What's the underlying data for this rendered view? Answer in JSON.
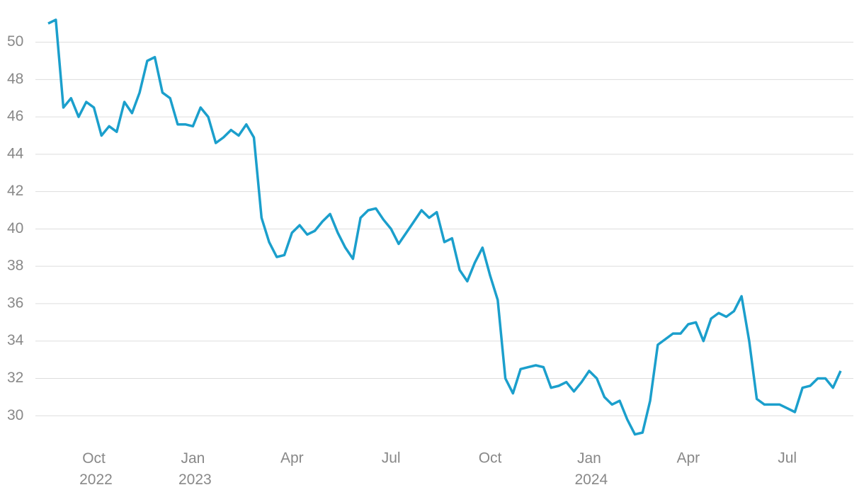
{
  "chart_data": {
    "type": "line",
    "categories": [
      null,
      null,
      null,
      null,
      null,
      null,
      "Oct 2022",
      null,
      null,
      null,
      null,
      null,
      null,
      null,
      null,
      null,
      null,
      null,
      null,
      "Jan 2023",
      null,
      null,
      null,
      null,
      null,
      null,
      null,
      null,
      null,
      null,
      null,
      null,
      "Apr",
      null,
      null,
      null,
      null,
      null,
      null,
      null,
      null,
      null,
      null,
      null,
      null,
      "Jul",
      null,
      null,
      null,
      null,
      null,
      null,
      null,
      null,
      null,
      null,
      null,
      null,
      "Oct",
      null,
      null,
      null,
      null,
      null,
      null,
      null,
      null,
      null,
      null,
      null,
      null,
      "Jan 2024",
      null,
      null,
      null,
      null,
      null,
      null,
      null,
      null,
      null,
      null,
      null,
      null,
      "Apr",
      null,
      null,
      null,
      null,
      null,
      null,
      null,
      null,
      null,
      null,
      null,
      null,
      "Jul",
      null,
      null,
      null,
      null,
      null,
      null,
      null
    ],
    "values": [
      51.0,
      51.2,
      46.5,
      47.0,
      46.0,
      46.8,
      46.5,
      45.0,
      45.5,
      45.2,
      46.8,
      46.2,
      47.3,
      49.0,
      49.2,
      47.3,
      47.0,
      45.6,
      45.6,
      45.5,
      46.5,
      46.0,
      44.6,
      44.9,
      45.3,
      45.0,
      45.6,
      44.9,
      40.6,
      39.3,
      38.5,
      38.6,
      39.8,
      40.2,
      39.7,
      39.9,
      40.4,
      40.8,
      39.8,
      39.0,
      38.4,
      40.6,
      41.0,
      41.1,
      40.5,
      40.0,
      39.2,
      39.8,
      40.4,
      41.0,
      40.6,
      40.9,
      39.3,
      39.5,
      37.8,
      37.2,
      38.2,
      39.0,
      37.5,
      36.2,
      32.0,
      31.2,
      32.5,
      32.6,
      32.7,
      32.6,
      31.5,
      31.6,
      31.8,
      31.3,
      31.8,
      32.4,
      32.0,
      31.0,
      30.6,
      30.8,
      29.8,
      29.0,
      29.1,
      30.8,
      33.8,
      34.1,
      34.4,
      34.4,
      34.9,
      35.0,
      34.0,
      35.2,
      35.5,
      35.3,
      35.6,
      36.4,
      34.0,
      30.9,
      30.6,
      30.6,
      30.6,
      30.4,
      30.2,
      31.5,
      31.6,
      32.0,
      32.0,
      31.5,
      32.4
    ],
    "color": "#1b9fcc",
    "ylim": [
      28,
      51.5
    ],
    "yticks": [
      30,
      32,
      34,
      36,
      38,
      40,
      42,
      44,
      46,
      48,
      50
    ],
    "grid": true
  }
}
